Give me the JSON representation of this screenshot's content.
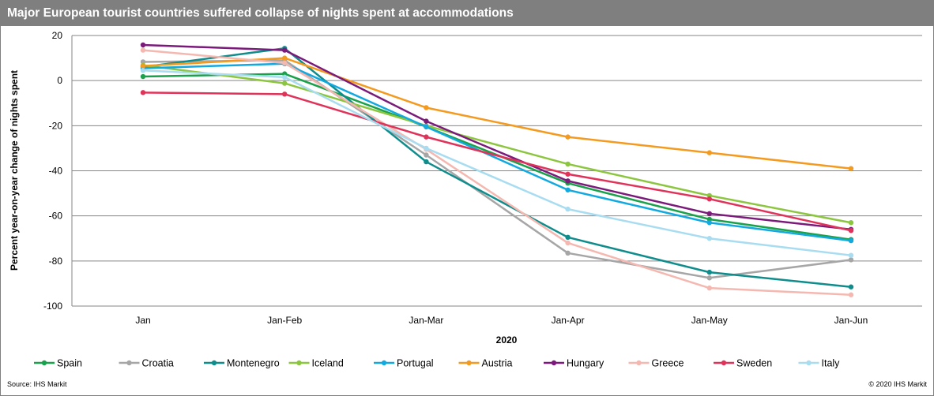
{
  "header": {
    "title": "Major European tourist countries suffered collapse of nights spent at accommodations"
  },
  "footer": {
    "source": "Source:  IHS Markit",
    "copyright": "© 2020  IHS Markit"
  },
  "chart_data": {
    "type": "line",
    "title": "Major European tourist countries suffered collapse of nights spent at accommodations",
    "xlabel": "2020",
    "ylabel": "Percent year-on-year change of nights spent",
    "categories": [
      "Jan",
      "Jan-Feb",
      "Jan-Mar",
      "Jan-Apr",
      "Jan-May",
      "Jan-Jun"
    ],
    "ylim": [
      -100,
      20
    ],
    "yticks": [
      20,
      0,
      -20,
      -40,
      -60,
      -80,
      -100
    ],
    "grid": true,
    "legend_position": "bottom",
    "series": [
      {
        "name": "Spain",
        "color": "#1aa14b",
        "values": [
          1.8,
          3.0,
          -20.5,
          -45.5,
          -61.5,
          -70.5
        ]
      },
      {
        "name": "Croatia",
        "color": "#a6a6a6",
        "values": [
          8.3,
          9.0,
          -33.0,
          -76.5,
          -87.5,
          -79.5
        ]
      },
      {
        "name": "Montenegro",
        "color": "#0f8c8c",
        "values": [
          6.0,
          14.3,
          -36.0,
          -69.5,
          -85.0,
          -91.5
        ]
      },
      {
        "name": "Iceland",
        "color": "#8cc63f",
        "values": [
          6.8,
          -1.2,
          -20.0,
          -37.0,
          -51.0,
          -63.0
        ]
      },
      {
        "name": "Portugal",
        "color": "#12a9e0",
        "values": [
          5.5,
          7.5,
          -20.5,
          -48.5,
          -63.0,
          -71.0
        ]
      },
      {
        "name": "Austria",
        "color": "#f39a1f",
        "values": [
          6.5,
          10.0,
          -12.0,
          -25.0,
          -32.0,
          -39.0
        ]
      },
      {
        "name": "Hungary",
        "color": "#7b1a7b",
        "values": [
          15.8,
          13.5,
          -18.0,
          -44.5,
          -59.0,
          -66.0
        ]
      },
      {
        "name": "Greece",
        "color": "#f4b8b0",
        "values": [
          13.5,
          7.8,
          -30.5,
          -72.0,
          -92.0,
          -95.0
        ]
      },
      {
        "name": "Sweden",
        "color": "#e0335a",
        "values": [
          -5.3,
          -6.0,
          -25.0,
          -41.5,
          -52.5,
          -66.5
        ]
      },
      {
        "name": "Italy",
        "color": "#a8dcf0",
        "values": [
          4.5,
          1.5,
          -30.0,
          -57.0,
          -70.0,
          -77.5
        ]
      }
    ]
  }
}
